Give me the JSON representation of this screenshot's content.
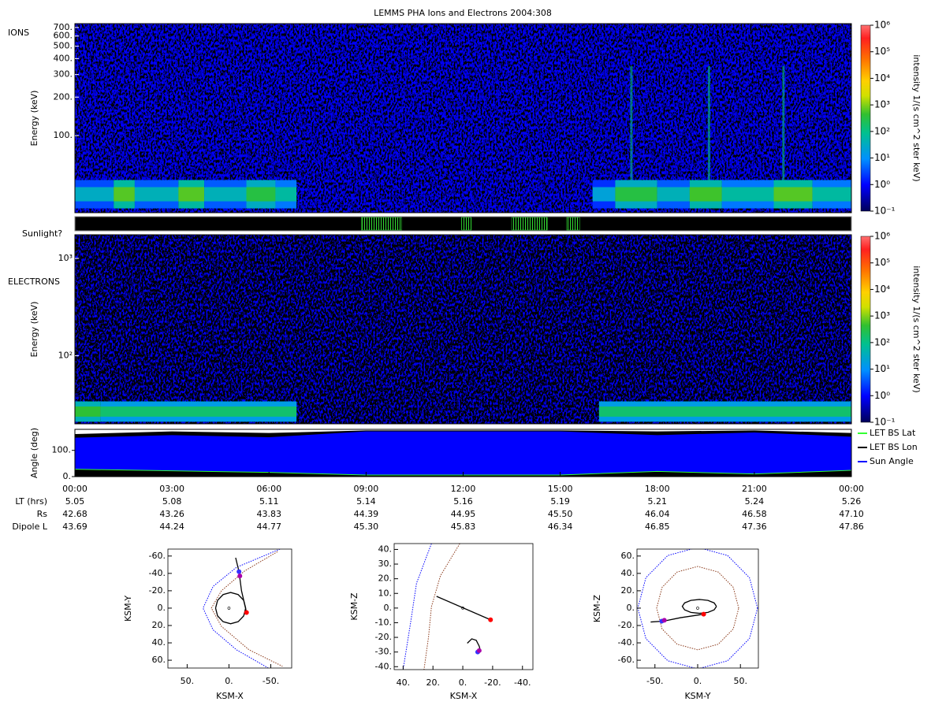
{
  "chart_data": [
    {
      "type": "spectrogram",
      "title": "LEMMS PHA Ions and Electrons  2004:308",
      "label": "IONS",
      "ylabel": "Energy (keV)",
      "log": true,
      "xlim": [
        0,
        24
      ],
      "ylim": [
        25,
        750
      ],
      "yticks": [
        {
          "value": 700,
          "label": "700."
        },
        {
          "value": 600,
          "label": "600."
        },
        {
          "value": 500,
          "label": "500."
        },
        {
          "value": 400,
          "label": "400."
        },
        {
          "value": 300,
          "label": "300."
        },
        {
          "value": 200,
          "label": "200."
        },
        {
          "value": 100,
          "label": "100."
        }
      ],
      "band": {
        "energy": [
          27,
          45
        ],
        "segments": [
          [
            0,
            1.2,
            1.5
          ],
          [
            1.2,
            1.85,
            2.8
          ],
          [
            1.85,
            3.2,
            1.6
          ],
          [
            3.2,
            4.0,
            2.8
          ],
          [
            4.0,
            5.3,
            1.6
          ],
          [
            5.3,
            6.2,
            2.5
          ],
          [
            6.2,
            6.85,
            1.8
          ],
          [
            16.0,
            16.7,
            1.3
          ],
          [
            16.7,
            18.0,
            2.5
          ],
          [
            18.0,
            19.0,
            1.6
          ],
          [
            19.0,
            20.0,
            2.7
          ],
          [
            20.0,
            21.6,
            1.8
          ],
          [
            21.6,
            22.8,
            2.8
          ],
          [
            22.8,
            24,
            1.8
          ]
        ]
      },
      "bursts": {
        "times": [
          17.2,
          19.6,
          21.9
        ],
        "energy": [
          45,
          350
        ],
        "level": 2
      },
      "colorbar": {
        "label": "intensity 1/(s cm^2 ster keV)",
        "lim": [
          -1,
          6
        ],
        "ticks": [
          {
            "value": 6,
            "label": "10⁶"
          },
          {
            "value": 5,
            "label": "10⁵"
          },
          {
            "value": 4,
            "label": "10⁴"
          },
          {
            "value": 3,
            "label": "10³"
          },
          {
            "value": 2,
            "label": "10²"
          },
          {
            "value": 1,
            "label": "10¹"
          },
          {
            "value": 0,
            "label": "10⁰"
          },
          {
            "value": -1,
            "label": "10⁻¹"
          }
        ]
      }
    },
    {
      "type": "timeline",
      "label": "Sunlight?",
      "xlim": [
        0,
        24
      ],
      "color": "#33dd33",
      "intervals": [
        [
          8.85,
          10.1
        ],
        [
          11.95,
          12.25
        ],
        [
          13.5,
          14.6
        ],
        [
          15.2,
          15.6
        ]
      ]
    },
    {
      "type": "spectrogram",
      "label": "ELECTRONS",
      "ylabel": "Energy (keV)",
      "log": true,
      "xlim": [
        0,
        24
      ],
      "ylim": [
        20,
        1750
      ],
      "yticks": [
        {
          "value": 1000,
          "label": "10³"
        },
        {
          "value": 100,
          "label": "10²"
        }
      ],
      "band": {
        "energy": [
          21,
          34
        ],
        "segments": [
          [
            0,
            0.8,
            2.6
          ],
          [
            0.8,
            6.85,
            2.2
          ],
          [
            16.2,
            24,
            2.2
          ]
        ]
      },
      "colorbar": {
        "label": "intensity 1/(s cm^2 ster keV)",
        "lim": [
          -1,
          6
        ],
        "ticks": [
          {
            "value": 6,
            "label": "10⁶"
          },
          {
            "value": 5,
            "label": "10⁵"
          },
          {
            "value": 4,
            "label": "10⁴"
          },
          {
            "value": 3,
            "label": "10³"
          },
          {
            "value": 2,
            "label": "10²"
          },
          {
            "value": 1,
            "label": "10¹"
          },
          {
            "value": 0,
            "label": "10⁰"
          },
          {
            "value": -1,
            "label": "10⁻¹"
          }
        ]
      }
    },
    {
      "type": "line",
      "ylabel": "Angle (deg)",
      "xlim": [
        0,
        24
      ],
      "ylim": [
        0,
        180
      ],
      "yticks": [
        {
          "value": 0,
          "label": "0."
        },
        {
          "value": 100,
          "label": "100."
        }
      ],
      "xticks": [
        {
          "value": 0,
          "label": "00:00"
        },
        {
          "value": 3,
          "label": "03:00"
        },
        {
          "value": 6,
          "label": "06:00"
        },
        {
          "value": 9,
          "label": "09:00"
        },
        {
          "value": 12,
          "label": "12:00"
        },
        {
          "value": 15,
          "label": "15:00"
        },
        {
          "value": 18,
          "label": "18:00"
        },
        {
          "value": 21,
          "label": "21:00"
        },
        {
          "value": 24,
          "label": "00:00"
        }
      ],
      "x": [
        0,
        3,
        6,
        9,
        12,
        15,
        18,
        21,
        24
      ],
      "legend": "right",
      "series": [
        {
          "name": "LET BS Lat",
          "color": "#33ff33",
          "values": [
            28,
            22,
            16,
            6,
            6,
            6,
            20,
            10,
            24
          ]
        },
        {
          "name": "LET BS Lon",
          "color": "#000000",
          "values": [
            162,
            172,
            166,
            176,
            176,
            176,
            172,
            176,
            166
          ]
        },
        {
          "name": "Sun Angle",
          "color": "#0000ff",
          "values": [
            148,
            158,
            150,
            172,
            172,
            172,
            158,
            168,
            152
          ]
        }
      ]
    },
    {
      "type": "orbit",
      "xlabel": "KSM-X",
      "ylabel": "KSM-Y",
      "xlim": [
        73,
        -75
      ],
      "ylim": [
        69,
        -68
      ],
      "xticks": [
        {
          "value": 50,
          "label": "50."
        },
        {
          "value": 0,
          "label": "0."
        },
        {
          "value": -50,
          "label": "-50."
        }
      ],
      "yticks": [
        {
          "value": -60,
          "label": "-60."
        },
        {
          "value": -40,
          "label": "-40."
        },
        {
          "value": -20,
          "label": "-20."
        },
        {
          "value": 0,
          "label": "0."
        },
        {
          "value": 20,
          "label": "20."
        },
        {
          "value": 40,
          "label": "40."
        },
        {
          "value": 60,
          "label": "60."
        }
      ],
      "bow_shock": {
        "color": "#0000ff",
        "x": [
          -61,
          -9,
          19,
          31,
          19,
          -9,
          -47
        ],
        "y": [
          -68,
          -47,
          -25,
          0,
          25,
          48,
          69
        ]
      },
      "magnetopause": {
        "color": "#8b3a1a",
        "x": [
          -58,
          -19,
          9,
          21,
          9,
          -24,
          -64
        ],
        "y": [
          -65,
          -43,
          -20,
          0,
          21,
          48,
          67
        ]
      },
      "trajectory": {
        "x": [
          16,
          13.6,
          7,
          -2,
          -11,
          -17.6,
          -20,
          -17.6,
          -11,
          -2,
          7,
          13.6,
          16
        ],
        "y": [
          0,
          9,
          15.6,
          18,
          15.6,
          9,
          0,
          -9,
          -15.6,
          -18,
          -15.6,
          -9,
          0
        ]
      },
      "track": {
        "x": [
          -21,
          -15,
          -12,
          -8
        ],
        "y": [
          5,
          -20,
          -42,
          -58
        ]
      },
      "markers": [
        {
          "x": -21,
          "y": 5,
          "color": "#ff0000"
        },
        {
          "x": -12,
          "y": -42,
          "color": "#3333ff"
        },
        {
          "x": -13,
          "y": -37,
          "color": "#aa00aa"
        }
      ]
    },
    {
      "type": "orbit",
      "xlabel": "KSM-X",
      "ylabel": "KSM-Z",
      "xlim": [
        46,
        -47
      ],
      "ylim": [
        -42,
        44
      ],
      "xticks": [
        {
          "value": 40,
          "label": "40."
        },
        {
          "value": 20,
          "label": "20."
        },
        {
          "value": 0,
          "label": "0."
        },
        {
          "value": -20,
          "label": "-20."
        },
        {
          "value": -40,
          "label": "-40."
        }
      ],
      "yticks": [
        {
          "value": 40,
          "label": "40."
        },
        {
          "value": 30,
          "label": "30."
        },
        {
          "value": 20,
          "label": "20."
        },
        {
          "value": 10,
          "label": "10."
        },
        {
          "value": 0,
          "label": "0."
        },
        {
          "value": -10,
          "label": "-10."
        },
        {
          "value": -20,
          "label": "-20."
        },
        {
          "value": -30,
          "label": "-30."
        },
        {
          "value": -40,
          "label": "-40."
        }
      ],
      "bow_shock": {
        "color": "#0000ff",
        "x": [
          21,
          31,
          35,
          40
        ],
        "y": [
          44,
          17,
          -10,
          -42
        ]
      },
      "magnetopause": {
        "color": "#8b3a1a",
        "x": [
          2,
          15,
          21,
          23,
          26
        ],
        "y": [
          44,
          22,
          1,
          -20,
          -42
        ]
      },
      "trajectory": {
        "x": [
          17.6,
          -18.6
        ],
        "y": [
          8,
          -8
        ]
      },
      "track": {
        "x": [
          -3,
          -6,
          -9,
          -11,
          -12
        ],
        "y": [
          -24,
          -21,
          -22,
          -26,
          -30
        ]
      },
      "markers": [
        {
          "x": -18.6,
          "y": -8,
          "color": "#ff0000"
        },
        {
          "x": -10,
          "y": -30,
          "color": "#3333ff"
        },
        {
          "x": -11,
          "y": -29,
          "color": "#aa00aa"
        }
      ]
    },
    {
      "type": "orbit",
      "xlabel": "KSM-Y",
      "ylabel": "KSM-Z",
      "xlim": [
        -71,
        71
      ],
      "ylim": [
        -69,
        68
      ],
      "xticks": [
        {
          "value": -50,
          "label": "-50."
        },
        {
          "value": 0,
          "label": "0."
        },
        {
          "value": 50,
          "label": "50."
        }
      ],
      "yticks": [
        {
          "value": 60,
          "label": "60."
        },
        {
          "value": 40,
          "label": "40."
        },
        {
          "value": 20,
          "label": "20."
        },
        {
          "value": 0,
          "label": "0."
        },
        {
          "value": -20,
          "label": "-20."
        },
        {
          "value": -40,
          "label": "-40."
        },
        {
          "value": -60,
          "label": "-60."
        }
      ],
      "bow_shock": {
        "color": "#0000ff",
        "x": [
          70,
          60.6,
          35,
          0,
          -35,
          -60.6,
          -70,
          -60.6,
          -35,
          0,
          35,
          60.6,
          70
        ],
        "y": [
          0,
          35,
          60.6,
          70,
          60.6,
          35,
          0,
          -35,
          -60.6,
          -70,
          -60.6,
          -35,
          0
        ]
      },
      "magnetopause": {
        "color": "#8b3a1a",
        "x": [
          48,
          41.6,
          24,
          0,
          -24,
          -41.6,
          -48,
          -41.6,
          -24,
          0,
          24,
          41.6,
          48
        ],
        "y": [
          0,
          24,
          41.6,
          48,
          41.6,
          24,
          0,
          -24,
          -41.6,
          -48,
          -41.6,
          -24,
          0
        ]
      },
      "trajectory": {
        "x": [
          22,
          19.3,
          12,
          2,
          -8,
          -15.3,
          -18,
          -15.3,
          -8,
          2,
          12,
          19.3,
          22
        ],
        "y": [
          2,
          6,
          8.9,
          10,
          8.9,
          6,
          2,
          -2,
          -4.9,
          -6,
          -4.9,
          -2,
          2
        ]
      },
      "track": {
        "x": [
          7,
          -20,
          -40,
          -55
        ],
        "y": [
          -7,
          -11,
          -15,
          -16
        ]
      },
      "markers": [
        {
          "x": 7,
          "y": -7,
          "color": "#ff0000"
        },
        {
          "x": -42,
          "y": -15,
          "color": "#3333ff"
        },
        {
          "x": -39,
          "y": -14,
          "color": "#aa00aa"
        }
      ]
    }
  ],
  "ephemeris": {
    "rows": [
      {
        "label": "LT (hrs)",
        "values": [
          "5.05",
          "5.08",
          "5.11",
          "5.14",
          "5.16",
          "5.19",
          "5.21",
          "5.24",
          "5.26"
        ]
      },
      {
        "label": "Rs",
        "values": [
          "42.68",
          "43.26",
          "43.83",
          "44.39",
          "44.95",
          "45.50",
          "46.04",
          "46.58",
          "47.10"
        ]
      },
      {
        "label": "Dipole L",
        "values": [
          "43.69",
          "44.24",
          "44.77",
          "45.30",
          "45.83",
          "46.34",
          "46.85",
          "47.36",
          "47.86"
        ]
      }
    ]
  }
}
